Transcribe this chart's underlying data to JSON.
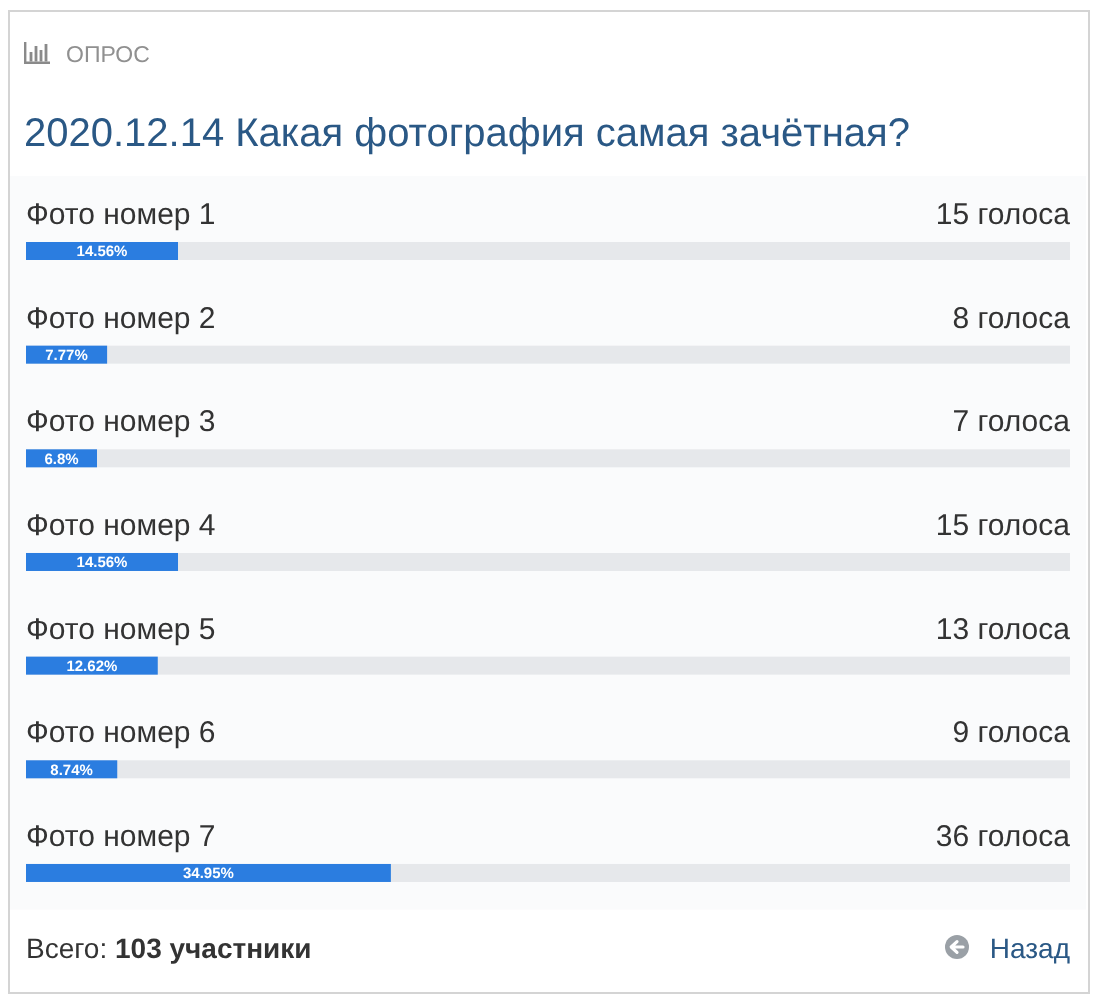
{
  "chart_data": {
    "type": "bar",
    "orientation": "horizontal",
    "title": "2020.12.14 Какая фотография самая зачётная?",
    "categories": [
      "Фото номер 1",
      "Фото номер 2",
      "Фото номер 3",
      "Фото номер 4",
      "Фото номер 5",
      "Фото номер 6",
      "Фото номер 7"
    ],
    "values": [
      14.56,
      7.77,
      6.8,
      14.56,
      12.62,
      8.74,
      34.95
    ],
    "value_labels": [
      "14.56%",
      "7.77%",
      "6.8%",
      "14.56%",
      "12.62%",
      "8.74%",
      "34.95%"
    ],
    "color": "#2b7de0",
    "xlim": [
      0,
      100
    ],
    "tick_labels": "y",
    "annotations": [
      "ОПРОС",
      "15 голоса",
      "8 голоса",
      "7 голоса",
      "15 голоса",
      "13 голоса",
      "9 голоса",
      "36 голоса",
      "Всего: 103 участники",
      "Назад"
    ]
  }
}
